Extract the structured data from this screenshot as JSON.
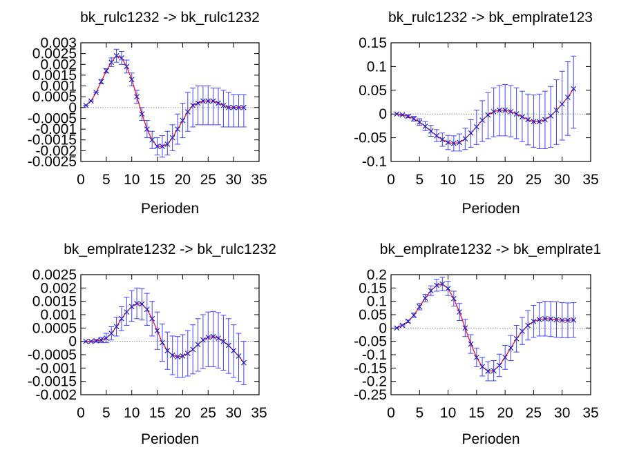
{
  "colors": {
    "irf_line": "#e8112d",
    "band": "#4040ff",
    "marker": "#2020c0",
    "zero": "#888888",
    "axis": "#000000"
  },
  "chart_data": [
    {
      "type": "line",
      "title": "bk_rulc1232 -> bk_rulc1232",
      "xlabel": "Perioden",
      "ylabel": "",
      "xlim": [
        0,
        35
      ],
      "ylim": [
        -0.0025,
        0.003
      ],
      "xticks": [
        "0",
        "5",
        "10",
        "15",
        "20",
        "25",
        "30",
        "35"
      ],
      "yticks": [
        "0.003",
        "0.0025",
        "0.002",
        "0.0015",
        "0.001",
        "0.0005",
        "0",
        "-0.0005",
        "-0.001",
        "-0.0015",
        "-0.002",
        "-0.0025"
      ],
      "grid": false,
      "x": [
        1,
        2,
        3,
        4,
        5,
        6,
        7,
        8,
        9,
        10,
        11,
        12,
        13,
        14,
        15,
        16,
        17,
        18,
        19,
        20,
        21,
        22,
        23,
        24,
        25,
        26,
        27,
        28,
        29,
        30,
        31,
        32
      ],
      "irf": [
        0.0001,
        0.0003,
        0.0007,
        0.0012,
        0.0017,
        0.0021,
        0.0024,
        0.0023,
        0.0019,
        0.0013,
        0.0005,
        -0.0003,
        -0.001,
        -0.0015,
        -0.0018,
        -0.0018,
        -0.0017,
        -0.0014,
        -0.001,
        -0.0006,
        -0.0002,
        0.0001,
        0.0002,
        0.0003,
        0.0003,
        0.0003,
        0.0002,
        0.0001,
        0.0,
        0.0,
        0.0,
        0.0
      ],
      "lower": [
        0.0001,
        0.0003,
        0.0007,
        0.0011,
        0.0016,
        0.0019,
        0.0021,
        0.002,
        0.0016,
        0.001,
        0.0002,
        -0.0006,
        -0.0014,
        -0.0019,
        -0.0022,
        -0.0023,
        -0.0022,
        -0.002,
        -0.0017,
        -0.0014,
        -0.0011,
        -0.0009,
        -0.0008,
        -0.0008,
        -0.0008,
        -0.0008,
        -0.0008,
        -0.0009,
        -0.0009,
        -0.0009,
        -0.0009,
        -0.0009
      ],
      "upper": [
        0.0001,
        0.0003,
        0.0007,
        0.0013,
        0.0018,
        0.0023,
        0.0027,
        0.0026,
        0.0022,
        0.0016,
        0.0008,
        0.0,
        -0.0006,
        -0.0011,
        -0.0014,
        -0.0013,
        -0.0011,
        -0.0008,
        -0.0003,
        0.0002,
        0.0007,
        0.0009,
        0.001,
        0.001,
        0.001,
        0.0009,
        0.0009,
        0.0008,
        0.0007,
        0.0006,
        0.0006,
        0.0006
      ]
    },
    {
      "type": "line",
      "title": "bk_rulc1232 -> bk_emplrate123",
      "xlabel": "Perioden",
      "ylabel": "",
      "xlim": [
        0,
        35
      ],
      "ylim": [
        -0.1,
        0.15
      ],
      "xticks": [
        "0",
        "5",
        "10",
        "15",
        "20",
        "25",
        "30",
        "35"
      ],
      "yticks": [
        "0.15",
        "0.1",
        "0.05",
        "0",
        "-0.05",
        "-0.1"
      ],
      "grid": false,
      "x": [
        1,
        2,
        3,
        4,
        5,
        6,
        7,
        8,
        9,
        10,
        11,
        12,
        13,
        14,
        15,
        16,
        17,
        18,
        19,
        20,
        21,
        22,
        23,
        24,
        25,
        26,
        27,
        28,
        29,
        30,
        31,
        32
      ],
      "irf": [
        0.0,
        -0.002,
        -0.005,
        -0.01,
        -0.017,
        -0.026,
        -0.036,
        -0.046,
        -0.054,
        -0.06,
        -0.062,
        -0.06,
        -0.052,
        -0.04,
        -0.027,
        -0.013,
        -0.002,
        0.005,
        0.008,
        0.008,
        0.005,
        0.0,
        -0.006,
        -0.012,
        -0.016,
        -0.016,
        -0.012,
        -0.004,
        0.008,
        0.021,
        0.035,
        0.053
      ],
      "lower": [
        0.0,
        -0.003,
        -0.008,
        -0.015,
        -0.024,
        -0.035,
        -0.047,
        -0.058,
        -0.068,
        -0.075,
        -0.078,
        -0.078,
        -0.075,
        -0.07,
        -0.064,
        -0.058,
        -0.052,
        -0.048,
        -0.046,
        -0.046,
        -0.048,
        -0.052,
        -0.058,
        -0.065,
        -0.07,
        -0.073,
        -0.073,
        -0.07,
        -0.064,
        -0.055,
        -0.045,
        -0.03
      ],
      "upper": [
        0.0,
        0.0,
        -0.002,
        -0.005,
        -0.01,
        -0.016,
        -0.024,
        -0.033,
        -0.04,
        -0.045,
        -0.046,
        -0.042,
        -0.03,
        -0.012,
        0.008,
        0.028,
        0.045,
        0.055,
        0.06,
        0.062,
        0.06,
        0.055,
        0.048,
        0.042,
        0.04,
        0.042,
        0.048,
        0.058,
        0.072,
        0.09,
        0.11,
        0.122
      ]
    },
    {
      "type": "line",
      "title": "bk_emplrate1232 -> bk_rulc1232",
      "xlabel": "Perioden",
      "ylabel": "",
      "xlim": [
        0,
        35
      ],
      "ylim": [
        -0.002,
        0.0025
      ],
      "xticks": [
        "0",
        "5",
        "10",
        "15",
        "20",
        "25",
        "30",
        "35"
      ],
      "yticks": [
        "0.0025",
        "0.002",
        "0.0015",
        "0.001",
        "0.0005",
        "0",
        "-0.0005",
        "-0.001",
        "-0.0015",
        "-0.002"
      ],
      "grid": false,
      "x": [
        1,
        2,
        3,
        4,
        5,
        6,
        7,
        8,
        9,
        10,
        11,
        12,
        13,
        14,
        15,
        16,
        17,
        18,
        19,
        20,
        21,
        22,
        23,
        24,
        25,
        26,
        27,
        28,
        29,
        30,
        31,
        32
      ],
      "irf": [
        0.0,
        0.0,
        2e-05,
        5e-05,
        0.00012,
        0.0003,
        0.00055,
        0.00085,
        0.0011,
        0.0013,
        0.00142,
        0.0014,
        0.0012,
        0.00085,
        0.0004,
        -5e-05,
        -0.00035,
        -0.00052,
        -0.00058,
        -0.00055,
        -0.00045,
        -0.0003,
        -0.00012,
        5e-05,
        0.00015,
        0.00018,
        0.00012,
        0.0,
        -0.00015,
        -0.00035,
        -0.00055,
        -0.0008
      ],
      "lower": [
        0.0,
        -1e-05,
        -3e-05,
        -5e-05,
        -5e-05,
        5e-05,
        0.0002,
        0.0004,
        0.0006,
        0.00075,
        0.00085,
        0.0008,
        0.0006,
        0.0002,
        -0.0003,
        -0.00075,
        -0.00105,
        -0.00125,
        -0.00135,
        -0.00135,
        -0.0013,
        -0.00122,
        -0.00112,
        -0.00102,
        -0.00095,
        -0.00095,
        -0.001,
        -0.00108,
        -0.0012,
        -0.00135,
        -0.0015,
        -0.00162
      ],
      "upper": [
        0.0,
        1e-05,
        7e-05,
        0.00015,
        0.0003,
        0.00055,
        0.0009,
        0.0013,
        0.00165,
        0.0019,
        0.002,
        0.00198,
        0.0018,
        0.0015,
        0.0011,
        0.00065,
        0.00035,
        0.0002,
        0.00018,
        0.00025,
        0.0004,
        0.00062,
        0.00085,
        0.001,
        0.0011,
        0.00112,
        0.00108,
        0.00098,
        0.00085,
        0.00062,
        0.0003,
        0.0
      ]
    },
    {
      "type": "line",
      "title": "bk_emplrate1232 -> bk_emplrate1",
      "xlabel": "Perioden",
      "ylabel": "",
      "xlim": [
        0,
        35
      ],
      "ylim": [
        -0.25,
        0.2
      ],
      "xticks": [
        "0",
        "5",
        "10",
        "15",
        "20",
        "25",
        "30",
        "35"
      ],
      "yticks": [
        "0.2",
        "0.15",
        "0.1",
        "0.05",
        "0",
        "-0.05",
        "-0.1",
        "-0.15",
        "-0.2",
        "-0.25"
      ],
      "grid": false,
      "x": [
        1,
        2,
        3,
        4,
        5,
        6,
        7,
        8,
        9,
        10,
        11,
        12,
        13,
        14,
        15,
        16,
        17,
        18,
        19,
        20,
        21,
        22,
        23,
        24,
        25,
        26,
        27,
        28,
        29,
        30,
        31,
        32
      ],
      "irf": [
        0.0,
        0.01,
        0.025,
        0.048,
        0.08,
        0.112,
        0.14,
        0.16,
        0.165,
        0.148,
        0.11,
        0.06,
        0.0,
        -0.06,
        -0.11,
        -0.145,
        -0.162,
        -0.16,
        -0.14,
        -0.11,
        -0.075,
        -0.04,
        -0.012,
        0.01,
        0.025,
        0.032,
        0.035,
        0.034,
        0.031,
        0.029,
        0.029,
        0.03
      ],
      "lower": [
        0.0,
        0.008,
        0.02,
        0.04,
        0.068,
        0.098,
        0.122,
        0.138,
        0.14,
        0.122,
        0.082,
        0.028,
        -0.032,
        -0.095,
        -0.145,
        -0.18,
        -0.198,
        -0.198,
        -0.182,
        -0.155,
        -0.122,
        -0.09,
        -0.062,
        -0.045,
        -0.035,
        -0.03,
        -0.03,
        -0.032,
        -0.035,
        -0.036,
        -0.036,
        -0.035
      ],
      "upper": [
        0.0,
        0.012,
        0.03,
        0.056,
        0.092,
        0.126,
        0.158,
        0.182,
        0.19,
        0.175,
        0.138,
        0.092,
        0.032,
        -0.025,
        -0.075,
        -0.11,
        -0.126,
        -0.122,
        -0.098,
        -0.065,
        -0.028,
        0.01,
        0.04,
        0.065,
        0.085,
        0.095,
        0.1,
        0.1,
        0.098,
        0.095,
        0.094,
        0.095
      ]
    }
  ]
}
